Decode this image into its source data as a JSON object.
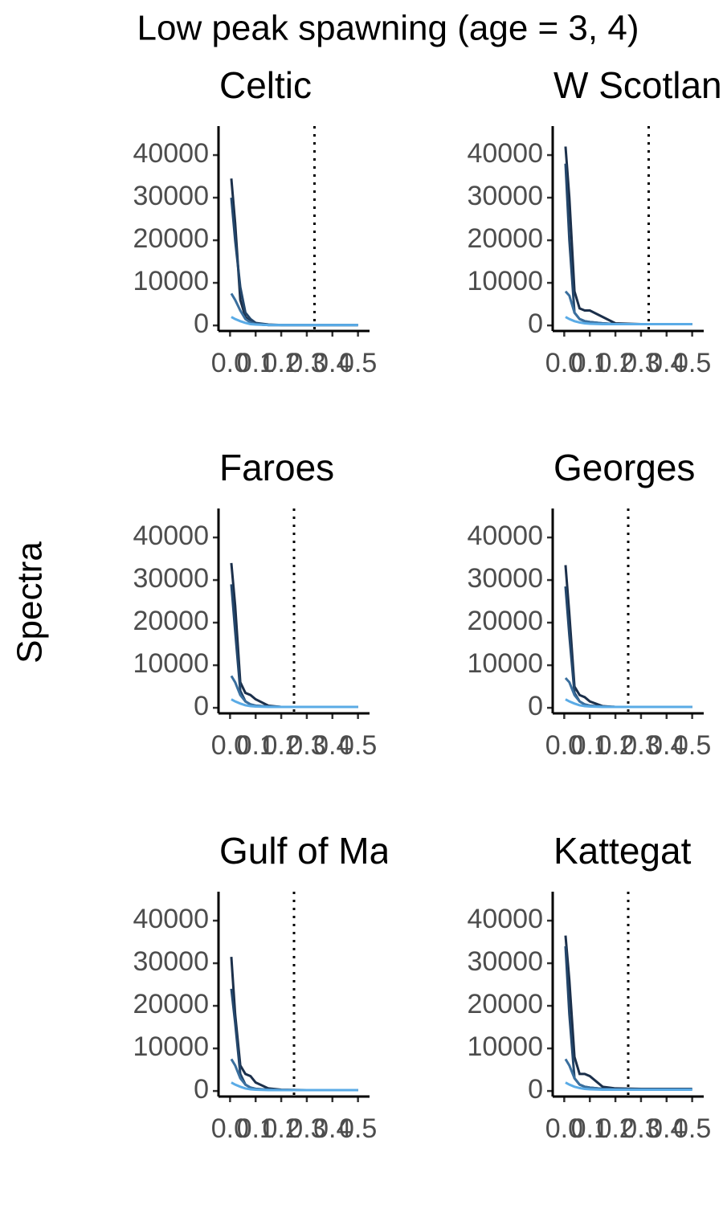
{
  "title": "Low peak spawning (age = 3, 4)",
  "y_label": "Spectra",
  "chart_data": [
    {
      "type": "line",
      "title": "Celtic",
      "x": [
        0.005,
        0.02,
        0.04,
        0.06,
        0.08,
        0.1,
        0.15,
        0.2,
        0.3,
        0.4,
        0.5
      ],
      "series": [
        {
          "color": "#1b2f4a",
          "values": [
            34500,
            24000,
            6000,
            2000,
            800,
            300,
            100,
            100,
            100,
            100,
            100
          ]
        },
        {
          "color": "#23466b",
          "values": [
            30000,
            20000,
            9000,
            3000,
            1500,
            600,
            200,
            100,
            100,
            100,
            100
          ]
        },
        {
          "color": "#3a6f9e",
          "values": [
            7500,
            6000,
            3500,
            1500,
            700,
            300,
            100,
            100,
            100,
            100,
            100
          ]
        },
        {
          "color": "#5aabe6",
          "values": [
            2000,
            1500,
            1000,
            600,
            300,
            200,
            100,
            100,
            100,
            100,
            100
          ]
        }
      ],
      "vline": 0.33,
      "xlim": [
        -0.02,
        0.52
      ],
      "ylim": [
        -1300,
        46800
      ],
      "xticks": [
        {
          "value": 0,
          "label": "0.0"
        },
        0.1,
        0.2,
        0.3,
        0.4,
        0.5
      ],
      "yticks": [
        0,
        10000,
        20000,
        30000,
        40000
      ]
    },
    {
      "type": "line",
      "title": "W Scotlan",
      "x": [
        0.005,
        0.02,
        0.04,
        0.06,
        0.08,
        0.1,
        0.15,
        0.2,
        0.3,
        0.4,
        0.5
      ],
      "series": [
        {
          "color": "#1b2f4a",
          "values": [
            42000,
            30000,
            8000,
            4000,
            3500,
            3500,
            2000,
            500,
            300,
            300,
            300
          ]
        },
        {
          "color": "#23466b",
          "values": [
            38000,
            20000,
            3000,
            1500,
            1000,
            800,
            500,
            300,
            300,
            300,
            300
          ]
        },
        {
          "color": "#3a6f9e",
          "values": [
            8000,
            7000,
            3000,
            1500,
            1000,
            800,
            500,
            300,
            300,
            300,
            300
          ]
        },
        {
          "color": "#5aabe6",
          "values": [
            2000,
            1500,
            1000,
            700,
            500,
            400,
            300,
            300,
            300,
            300,
            300
          ]
        }
      ],
      "vline": 0.33,
      "xlim": [
        -0.02,
        0.52
      ],
      "ylim": [
        -1300,
        46800
      ],
      "xticks": [
        {
          "value": 0,
          "label": "0.0"
        },
        0.1,
        0.2,
        0.3,
        0.4,
        0.5
      ],
      "yticks": [
        0,
        10000,
        20000,
        30000,
        40000
      ]
    },
    {
      "type": "line",
      "title": "Faroes",
      "x": [
        0.005,
        0.02,
        0.04,
        0.06,
        0.08,
        0.1,
        0.15,
        0.2,
        0.3,
        0.4,
        0.5
      ],
      "series": [
        {
          "color": "#1b2f4a",
          "values": [
            34000,
            24000,
            6000,
            3500,
            3000,
            2000,
            500,
            200,
            200,
            200,
            200
          ]
        },
        {
          "color": "#23466b",
          "values": [
            29000,
            18000,
            4000,
            1500,
            800,
            500,
            300,
            200,
            200,
            200,
            200
          ]
        },
        {
          "color": "#3a6f9e",
          "values": [
            7500,
            6000,
            3000,
            1500,
            800,
            500,
            300,
            200,
            200,
            200,
            200
          ]
        },
        {
          "color": "#5aabe6",
          "values": [
            2000,
            1500,
            1000,
            600,
            400,
            300,
            200,
            200,
            200,
            200,
            200
          ]
        }
      ],
      "vline": 0.25,
      "xlim": [
        -0.02,
        0.52
      ],
      "ylim": [
        -1300,
        46800
      ],
      "xticks": [
        {
          "value": 0,
          "label": "0.0"
        },
        0.1,
        0.2,
        0.3,
        0.4,
        0.5
      ],
      "yticks": [
        0,
        10000,
        20000,
        30000,
        40000
      ]
    },
    {
      "type": "line",
      "title": "Georges",
      "x": [
        0.005,
        0.02,
        0.04,
        0.06,
        0.08,
        0.1,
        0.15,
        0.2,
        0.3,
        0.4,
        0.5
      ],
      "series": [
        {
          "color": "#1b2f4a",
          "values": [
            33500,
            22000,
            5000,
            3000,
            2500,
            1500,
            400,
            200,
            200,
            200,
            200
          ]
        },
        {
          "color": "#23466b",
          "values": [
            28500,
            17000,
            3500,
            1500,
            800,
            500,
            300,
            200,
            200,
            200,
            200
          ]
        },
        {
          "color": "#3a6f9e",
          "values": [
            7000,
            6000,
            3000,
            1500,
            800,
            500,
            300,
            200,
            200,
            200,
            200
          ]
        },
        {
          "color": "#5aabe6",
          "values": [
            2000,
            1500,
            1000,
            600,
            400,
            300,
            200,
            200,
            200,
            200,
            200
          ]
        }
      ],
      "vline": 0.25,
      "xlim": [
        -0.02,
        0.52
      ],
      "ylim": [
        -1300,
        46800
      ],
      "xticks": [
        {
          "value": 0,
          "label": "0.0"
        },
        0.1,
        0.2,
        0.3,
        0.4,
        0.5
      ],
      "yticks": [
        0,
        10000,
        20000,
        30000,
        40000
      ]
    },
    {
      "type": "line",
      "title": "Gulf of Ma",
      "x": [
        0.005,
        0.02,
        0.04,
        0.06,
        0.08,
        0.1,
        0.15,
        0.2,
        0.3,
        0.4,
        0.5
      ],
      "series": [
        {
          "color": "#1b2f4a",
          "values": [
            31500,
            18000,
            6000,
            4000,
            3500,
            2000,
            600,
            300,
            200,
            200,
            200
          ]
        },
        {
          "color": "#23466b",
          "values": [
            24000,
            16000,
            4000,
            1500,
            800,
            500,
            300,
            200,
            200,
            200,
            200
          ]
        },
        {
          "color": "#3a6f9e",
          "values": [
            7500,
            6000,
            3000,
            1500,
            800,
            500,
            300,
            200,
            200,
            200,
            200
          ]
        },
        {
          "color": "#5aabe6",
          "values": [
            2000,
            1500,
            1000,
            600,
            400,
            300,
            200,
            200,
            200,
            200,
            200
          ]
        }
      ],
      "vline": 0.25,
      "xlim": [
        -0.02,
        0.52
      ],
      "ylim": [
        -1300,
        46800
      ],
      "xticks": [
        {
          "value": 0,
          "label": "0.0"
        },
        0.1,
        0.2,
        0.3,
        0.4,
        0.5
      ],
      "yticks": [
        0,
        10000,
        20000,
        30000,
        40000
      ]
    },
    {
      "type": "line",
      "title": "Kattegat",
      "x": [
        0.005,
        0.02,
        0.04,
        0.06,
        0.08,
        0.1,
        0.15,
        0.2,
        0.3,
        0.4,
        0.5
      ],
      "series": [
        {
          "color": "#1b2f4a",
          "values": [
            36500,
            26000,
            8000,
            4000,
            4000,
            3500,
            1000,
            600,
            500,
            500,
            500
          ]
        },
        {
          "color": "#23466b",
          "values": [
            34000,
            18000,
            3000,
            1500,
            1000,
            800,
            500,
            400,
            400,
            400,
            400
          ]
        },
        {
          "color": "#3a6f9e",
          "values": [
            7500,
            6000,
            3000,
            1500,
            1000,
            800,
            500,
            400,
            400,
            400,
            400
          ]
        },
        {
          "color": "#5aabe6",
          "values": [
            2000,
            1500,
            1000,
            700,
            500,
            400,
            300,
            300,
            300,
            300,
            300
          ]
        }
      ],
      "vline": 0.25,
      "xlim": [
        -0.02,
        0.52
      ],
      "ylim": [
        -1300,
        46800
      ],
      "xticks": [
        {
          "value": 0,
          "label": "0.0"
        },
        0.1,
        0.2,
        0.3,
        0.4,
        0.5
      ],
      "yticks": [
        0,
        10000,
        20000,
        30000,
        40000
      ]
    }
  ]
}
